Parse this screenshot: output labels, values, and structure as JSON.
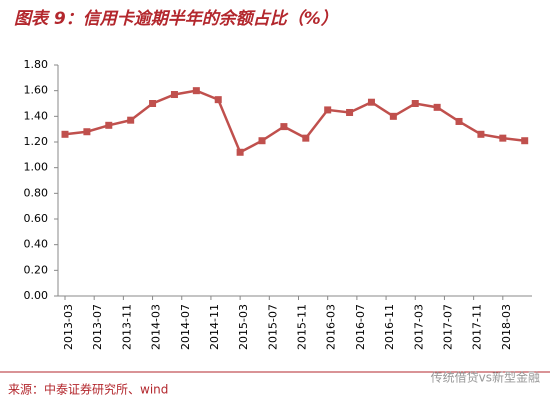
{
  "chart_data": {
    "type": "line",
    "title": "图表 9：信用卡逾期半年的余额占比（%）",
    "source": "来源：中泰证券研究所、wind",
    "watermark": "传统借贷vs新型金融",
    "x": [
      "2013-03",
      "2013-06",
      "2013-09",
      "2013-12",
      "2014-03",
      "2014-06",
      "2014-09",
      "2014-12",
      "2015-03",
      "2015-06",
      "2015-09",
      "2015-12",
      "2016-03",
      "2016-06",
      "2016-09",
      "2016-12",
      "2017-03",
      "2017-06",
      "2017-09",
      "2017-12",
      "2018-03",
      "2018-06"
    ],
    "series": [
      {
        "name": "信用卡逾期半年的余额占比",
        "color": "#c0504d",
        "values": [
          1.26,
          1.28,
          1.33,
          1.37,
          1.5,
          1.57,
          1.6,
          1.53,
          1.12,
          1.21,
          1.32,
          1.23,
          1.45,
          1.43,
          1.51,
          1.4,
          1.5,
          1.47,
          1.36,
          1.26,
          1.23,
          1.21
        ]
      }
    ],
    "xlim": [
      "2013-03",
      "2018-07"
    ],
    "xticks": [
      "2013-03",
      "2013-07",
      "2013-11",
      "2014-03",
      "2014-07",
      "2014-11",
      "2015-03",
      "2015-07",
      "2015-11",
      "2016-03",
      "2016-07",
      "2016-11",
      "2017-03",
      "2017-07",
      "2017-11",
      "2018-03"
    ],
    "ylim": [
      0,
      1.8
    ],
    "yticks": [
      {
        "value": 0,
        "label": "0.00"
      },
      {
        "value": 0.2,
        "label": "0.20"
      },
      {
        "value": 0.4,
        "label": "0.40"
      },
      {
        "value": 0.6,
        "label": "0.60"
      },
      {
        "value": 0.8,
        "label": "0.80"
      },
      {
        "value": 1,
        "label": "1.00"
      },
      {
        "value": 1.2,
        "label": "1.20"
      },
      {
        "value": 1.4,
        "label": "1.40"
      },
      {
        "value": 1.6,
        "label": "1.60"
      },
      {
        "value": 1.8,
        "label": "1.80"
      }
    ]
  }
}
